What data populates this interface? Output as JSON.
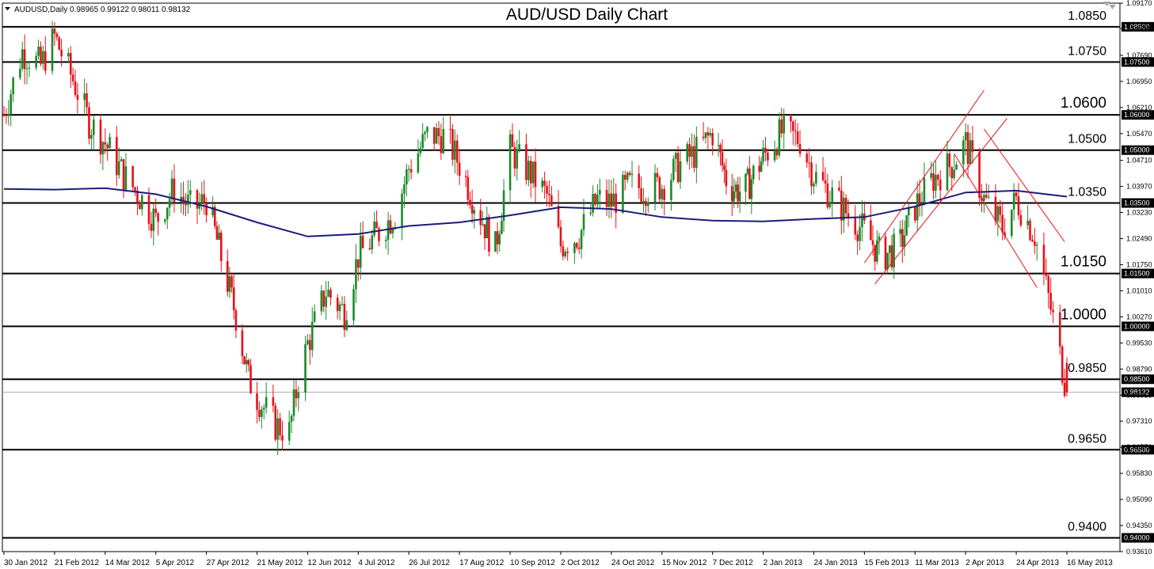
{
  "header": {
    "symbol_info": "AUDUSD,Daily  0.98965 0.99122 0.98011 0.98132",
    "title": "AUD/USD Daily Chart"
  },
  "colors": {
    "background": "#ffffff",
    "frame": "#000000",
    "bull_candle": "#1a8a2a",
    "bear_candle": "#e8101a",
    "moving_average": "#1c1c7a",
    "channel_lines": "#e8101a",
    "level_lines": "#000000",
    "current_price_line": "#aaaaaa",
    "price_box": "#000000"
  },
  "chart_data": {
    "type": "candlestick",
    "title": "AUD/USD Daily Chart",
    "instrument": "AUDUSD",
    "timeframe": "Daily",
    "last_bar": {
      "open": 0.98965,
      "high": 0.99122,
      "low": 0.98011,
      "close": 0.98132
    },
    "current_price": "0.98132",
    "ylim": [
      0.9361,
      1.0917
    ],
    "y_ticks": [
      "1.09170",
      "1.08450",
      "1.07690",
      "1.06950",
      "1.06210",
      "1.05470",
      "1.04710",
      "1.03970",
      "1.03230",
      "1.02490",
      "1.01750",
      "1.01010",
      "1.00270",
      "0.99530",
      "0.98790",
      "0.98050",
      "0.97310",
      "0.96570",
      "0.95830",
      "0.95090",
      "0.94350",
      "0.93610"
    ],
    "x_ticks": [
      "30 Jan 2012",
      "21 Feb 2012",
      "14 Mar 2012",
      "5 Apr 2012",
      "27 Apr 2012",
      "21 May 2012",
      "12 Jun 2012",
      "4 Jul 2012",
      "26 Jul 2012",
      "17 Aug 2012",
      "10 Sep 2012",
      "2 Oct 2012",
      "24 Oct 2012",
      "15 Nov 2012",
      "7 Dec 2012",
      "2 Jan 2013",
      "24 Jan 2013",
      "15 Feb 2013",
      "11 Mar 2013",
      "2 Apr 2013",
      "24 Apr 2013",
      "16 May 2013"
    ],
    "levels": [
      {
        "price": 1.085,
        "label": "1.0850",
        "box": "1.08500"
      },
      {
        "price": 1.075,
        "label": "1.0750",
        "box": "1.07500"
      },
      {
        "price": 1.06,
        "label": "1.0600",
        "box": "1.06000"
      },
      {
        "price": 1.05,
        "label": "1.0500",
        "box": "1.05000"
      },
      {
        "price": 1.035,
        "label": "1.0350",
        "box": "1.03500"
      },
      {
        "price": 1.015,
        "label": "1.0150",
        "box": "1.01500"
      },
      {
        "price": 1.0,
        "label": "1.0000",
        "box": "1.00000"
      },
      {
        "price": 0.985,
        "label": "0.9850",
        "box": "0.98500"
      },
      {
        "price": 0.965,
        "label": "0.9650",
        "box": "0.96500"
      },
      {
        "price": 0.94,
        "label": "0.9400",
        "box": "0.94000"
      }
    ],
    "price_path": [
      [
        "30 Jan 2012",
        1.06
      ],
      [
        "7 Feb 2012",
        1.078
      ],
      [
        "15 Feb 2012",
        1.074
      ],
      [
        "21 Feb 2012",
        1.082
      ],
      [
        "29 Feb 2012",
        1.07
      ],
      [
        "7 Mar 2012",
        1.058
      ],
      [
        "14 Mar 2012",
        1.052
      ],
      [
        "22 Mar 2012",
        1.043
      ],
      [
        "30 Mar 2012",
        1.036
      ],
      [
        "5 Apr 2012",
        1.03
      ],
      [
        "13 Apr 2012",
        1.039
      ],
      [
        "21 Apr 2012",
        1.033
      ],
      [
        "27 Apr 2012",
        1.036
      ],
      [
        "3 May 2012",
        1.022
      ],
      [
        "11 May 2012",
        1.003
      ],
      [
        "17 May 2012",
        0.985
      ],
      [
        "21 May 2012",
        0.98
      ],
      [
        "29 May 2012",
        0.972
      ],
      [
        "4 Jun 2012",
        0.97
      ],
      [
        "8 Jun 2012",
        0.985
      ],
      [
        "12 Jun 2012",
        0.995
      ],
      [
        "20 Jun 2012",
        1.01
      ],
      [
        "28 Jun 2012",
        1.004
      ],
      [
        "4 Jul 2012",
        1.02
      ],
      [
        "12 Jul 2012",
        1.026
      ],
      [
        "20 Jul 2012",
        1.032
      ],
      [
        "26 Jul 2012",
        1.045
      ],
      [
        "3 Aug 2012",
        1.054
      ],
      [
        "11 Aug 2012",
        1.054
      ],
      [
        "17 Aug 2012",
        1.046
      ],
      [
        "25 Aug 2012",
        1.034
      ],
      [
        "3 Sep 2012",
        1.022
      ],
      [
        "10 Sep 2012",
        1.05
      ],
      [
        "18 Sep 2012",
        1.044
      ],
      [
        "26 Sep 2012",
        1.037
      ],
      [
        "2 Oct 2012",
        1.023
      ],
      [
        "10 Oct 2012",
        1.026
      ],
      [
        "18 Oct 2012",
        1.036
      ],
      [
        "24 Oct 2012",
        1.035
      ],
      [
        "1 Nov 2012",
        1.04
      ],
      [
        "9 Nov 2012",
        1.039
      ],
      [
        "15 Nov 2012",
        1.04
      ],
      [
        "23 Nov 2012",
        1.046
      ],
      [
        "1 Dec 2012",
        1.05
      ],
      [
        "7 Dec 2012",
        1.055
      ],
      [
        "15 Dec 2012",
        1.04
      ],
      [
        "23 Dec 2012",
        1.038
      ],
      [
        "2 Jan 2013",
        1.048
      ],
      [
        "10 Jan 2013",
        1.055
      ],
      [
        "18 Jan 2013",
        1.053
      ],
      [
        "24 Jan 2013",
        1.043
      ],
      [
        "1 Feb 2013",
        1.037
      ],
      [
        "9 Feb 2013",
        1.031
      ],
      [
        "15 Feb 2013",
        1.027
      ],
      [
        "23 Feb 2013",
        1.02
      ],
      [
        "3 Mar 2013",
        1.022
      ],
      [
        "11 Mar 2013",
        1.034
      ],
      [
        "19 Mar 2013",
        1.042
      ],
      [
        "27 Mar 2013",
        1.046
      ],
      [
        "2 Apr 2013",
        1.052
      ],
      [
        "10 Apr 2013",
        1.036
      ],
      [
        "18 Apr 2013",
        1.028
      ],
      [
        "24 Apr 2013",
        1.036
      ],
      [
        "2 May 2013",
        1.026
      ],
      [
        "10 May 2013",
        1.002
      ],
      [
        "16 May 2013",
        0.98132
      ]
    ],
    "moving_average": [
      [
        "30 Jan 2012",
        1.039
      ],
      [
        "21 Feb 2012",
        1.0388
      ],
      [
        "14 Mar 2012",
        1.0392
      ],
      [
        "5 Apr 2012",
        1.0375
      ],
      [
        "27 Apr 2012",
        1.034
      ],
      [
        "21 May 2012",
        1.0295
      ],
      [
        "12 Jun 2012",
        1.0255
      ],
      [
        "4 Jul 2012",
        1.0262
      ],
      [
        "26 Jul 2012",
        1.0285
      ],
      [
        "17 Aug 2012",
        1.0295
      ],
      [
        "10 Sep 2012",
        1.0315
      ],
      [
        "2 Oct 2012",
        1.0338
      ],
      [
        "24 Oct 2012",
        1.0333
      ],
      [
        "15 Nov 2012",
        1.031
      ],
      [
        "7 Dec 2012",
        1.03
      ],
      [
        "2 Jan 2013",
        1.0298
      ],
      [
        "24 Jan 2013",
        1.0305
      ],
      [
        "15 Feb 2013",
        1.031
      ],
      [
        "11 Mar 2013",
        1.034
      ],
      [
        "2 Apr 2013",
        1.038
      ],
      [
        "24 Apr 2013",
        1.0385
      ],
      [
        "16 May 2013",
        1.0368
      ]
    ],
    "channel_lines": [
      {
        "from": [
          "15 Feb 2013",
          1.018
        ],
        "to": [
          "10 Apr 2013",
          1.067
        ]
      },
      {
        "from": [
          "20 Feb 2013",
          1.012
        ],
        "to": [
          "20 Apr 2013",
          1.059
        ]
      },
      {
        "from": [
          "28 Mar 2013",
          1.049
        ],
        "to": [
          "3 May 2013",
          1.011
        ]
      },
      {
        "from": [
          "10 Apr 2013",
          1.056
        ],
        "to": [
          "15 May 2013",
          1.024
        ]
      }
    ]
  }
}
